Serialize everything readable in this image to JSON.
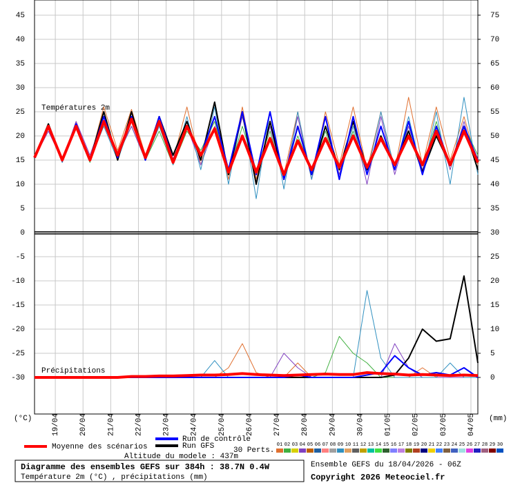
{
  "chart_data": {
    "type": "line",
    "x": [
      0,
      12,
      24,
      36,
      48,
      60,
      72,
      84,
      96,
      108,
      120,
      132,
      144,
      156,
      168,
      180,
      192,
      204,
      216,
      228,
      240,
      252,
      264,
      276,
      288,
      300,
      312,
      324,
      336,
      348,
      360,
      372,
      384
    ],
    "xlim": [
      0,
      384
    ],
    "xticks": [
      {
        "value": 18,
        "label": "19/04"
      },
      {
        "value": 42,
        "label": "20/04"
      },
      {
        "value": 66,
        "label": "21/04"
      },
      {
        "value": 90,
        "label": "22/04"
      },
      {
        "value": 114,
        "label": "23/04"
      },
      {
        "value": 138,
        "label": "24/04"
      },
      {
        "value": 162,
        "label": "25/04"
      },
      {
        "value": 186,
        "label": "26/04"
      },
      {
        "value": 210,
        "label": "27/04"
      },
      {
        "value": 234,
        "label": "28/04"
      },
      {
        "value": 258,
        "label": "29/04"
      },
      {
        "value": 282,
        "label": "30/04"
      },
      {
        "value": 306,
        "label": "01/05"
      },
      {
        "value": 330,
        "label": "02/05"
      },
      {
        "value": 354,
        "label": "03/05"
      },
      {
        "value": 378,
        "label": "04/05"
      }
    ],
    "ylim": [
      -37.57,
      48.14
    ],
    "yticks": [
      45,
      40,
      35,
      30,
      25,
      20,
      15,
      10,
      5,
      0,
      -5,
      -10,
      -15,
      -20,
      -25,
      -30
    ],
    "y2lim": [
      -7.57,
      78.14
    ],
    "y2ticks": [
      75,
      70,
      65,
      60,
      55,
      50,
      45,
      40,
      35,
      30,
      25,
      20,
      15,
      10,
      5,
      0
    ],
    "grid": true,
    "y_unit": "(°C)",
    "y2_unit": "(mm)",
    "temperature_label": "Températures 2m",
    "precipitation_label": "Précipitations",
    "series": [
      {
        "name": "Run GFS",
        "color": "#000000",
        "values": [
          15.5,
          22.5,
          15,
          22,
          15,
          25,
          15,
          25,
          15,
          24,
          16,
          23,
          15,
          27,
          12,
          25,
          10,
          23,
          11,
          22,
          12,
          22,
          13,
          23,
          13,
          20,
          14,
          21,
          12.5,
          20,
          14,
          22,
          13
        ],
        "precipitation": [
          0,
          0,
          0,
          0,
          0,
          0,
          0,
          0,
          0,
          0,
          0,
          0,
          0,
          0,
          0,
          0,
          0,
          0,
          0,
          0,
          0,
          0,
          0,
          0,
          0,
          0,
          0.5,
          4,
          10,
          7.5,
          8,
          21,
          3
        ]
      },
      {
        "name": "Run de contrôle",
        "color": "#0000ff",
        "values": [
          15.5,
          22,
          14.8,
          22.5,
          15,
          24,
          15.5,
          24,
          15,
          24,
          15,
          22,
          16,
          24,
          13,
          25,
          12,
          25,
          11,
          22,
          12,
          24,
          11,
          24,
          12,
          22,
          13,
          23,
          12,
          22,
          14,
          22,
          15
        ],
        "precipitation": [
          0,
          0,
          0,
          0,
          0,
          0,
          0,
          0,
          0,
          0,
          0,
          0,
          0,
          0,
          0,
          0,
          0,
          0,
          0,
          0.5,
          0,
          0,
          0,
          0,
          0.5,
          1,
          4.5,
          2,
          0.5,
          1,
          0.5,
          2,
          0
        ]
      },
      {
        "name": "Moyenne des scénarios",
        "color": "#ff0000",
        "values": [
          15.5,
          22,
          15,
          22,
          15,
          23,
          16,
          23.5,
          15.5,
          23,
          14.5,
          22,
          16,
          21.5,
          12.5,
          20,
          12.5,
          19.5,
          12,
          19,
          13,
          19.5,
          13.5,
          20,
          13.5,
          19.5,
          14,
          20,
          14,
          21,
          14,
          21,
          14.5
        ],
        "precipitation": [
          0,
          0,
          0,
          0,
          0,
          0,
          0,
          0.2,
          0.2,
          0.3,
          0.3,
          0.4,
          0.5,
          0.5,
          0.6,
          0.8,
          0.6,
          0.5,
          0.4,
          0.5,
          0.6,
          0.7,
          0.6,
          0.6,
          1,
          0.8,
          0.7,
          0.5,
          0.6,
          0.5,
          0.4,
          0.5,
          0.4
        ]
      }
    ],
    "perturbations_label": "30 Perts.",
    "perturbations": [
      {
        "name": "01",
        "color": "#e07030",
        "values": [
          15.5,
          22,
          14.5,
          23,
          15,
          26,
          17,
          25.5,
          16,
          24,
          15,
          26,
          14,
          24,
          11,
          26,
          11,
          23,
          12,
          25,
          11,
          25,
          14,
          26,
          13,
          25,
          13,
          28,
          14,
          26,
          15,
          24,
          14
        ],
        "precipitation": [
          0,
          0,
          0,
          0,
          0,
          0,
          0,
          0,
          0,
          0,
          0,
          0,
          0,
          0,
          2,
          7,
          1,
          0,
          0,
          3,
          0,
          0,
          0,
          0,
          0,
          0,
          0,
          0,
          2,
          0,
          0,
          0,
          0
        ]
      },
      {
        "name": "02",
        "color": "#40b040",
        "values": [
          15.5,
          22,
          15,
          21.5,
          14.5,
          24,
          16,
          22,
          15,
          21,
          14,
          21,
          17,
          23,
          12,
          22,
          13,
          21,
          11,
          20,
          13,
          21,
          12,
          21,
          12,
          20,
          14,
          22,
          13,
          23,
          13,
          22,
          16
        ],
        "precipitation": [
          0,
          0,
          0,
          0,
          0,
          0,
          0,
          0,
          0,
          0,
          0,
          0,
          0,
          0,
          0,
          0,
          0,
          0,
          0,
          0,
          0,
          1,
          8.5,
          5,
          3,
          0,
          0,
          0,
          0,
          0,
          0,
          0,
          0
        ]
      },
      {
        "name": "03",
        "color": "#d8d000"
      },
      {
        "name": "04",
        "color": "#8040c0",
        "values": [
          15.5,
          21,
          15,
          23,
          16,
          24,
          16,
          22,
          15,
          22,
          16,
          22,
          14,
          22,
          12,
          24,
          12,
          22,
          11,
          24,
          11,
          22,
          12,
          23,
          10,
          24,
          12,
          22,
          13,
          22,
          13,
          23,
          13
        ],
        "precipitation": [
          0,
          0,
          0,
          0,
          0,
          0,
          0,
          0,
          0,
          0,
          0,
          0,
          0,
          0,
          0,
          0,
          0,
          0,
          5,
          2,
          0,
          0,
          0,
          0,
          0,
          0,
          7,
          2,
          0,
          0,
          0,
          0,
          0
        ]
      },
      {
        "name": "05",
        "color": "#c06000"
      },
      {
        "name": "06",
        "color": "#2060a0"
      },
      {
        "name": "07",
        "color": "#ff8080"
      },
      {
        "name": "08",
        "color": "#a0a0a0"
      },
      {
        "name": "09",
        "color": "#3090c0",
        "values": [
          15.5,
          22,
          14.5,
          22,
          15,
          22,
          15,
          23,
          15,
          22,
          14,
          24,
          13,
          26,
          10,
          25,
          7,
          25,
          9,
          25,
          11,
          24,
          11,
          22,
          12,
          25,
          13,
          24,
          12,
          25,
          10,
          28,
          12
        ],
        "precipitation": [
          0,
          0,
          0,
          0,
          0,
          0,
          0,
          0,
          0,
          0,
          0,
          0,
          0,
          3.5,
          0,
          0,
          0,
          0,
          0,
          0,
          0,
          0,
          0,
          0,
          18,
          4,
          0,
          0,
          0,
          0,
          3,
          0,
          0
        ]
      },
      {
        "name": "10",
        "color": "#e0a060"
      },
      {
        "name": "11",
        "color": "#606060"
      },
      {
        "name": "12",
        "color": "#c0a000"
      },
      {
        "name": "13",
        "color": "#00c0a0"
      },
      {
        "name": "14",
        "color": "#40e040"
      },
      {
        "name": "15",
        "color": "#306030"
      },
      {
        "name": "16",
        "color": "#8080ff"
      },
      {
        "name": "17",
        "color": "#c080e0"
      },
      {
        "name": "18",
        "color": "#808000"
      },
      {
        "name": "19",
        "color": "#b04020"
      },
      {
        "name": "20",
        "color": "#000080"
      },
      {
        "name": "21",
        "color": "#f0d000"
      },
      {
        "name": "22",
        "color": "#4080ff"
      },
      {
        "name": "23",
        "color": "#806040"
      },
      {
        "name": "24",
        "color": "#4060c0"
      },
      {
        "name": "25",
        "color": "#a0e0e0"
      },
      {
        "name": "26",
        "color": "#e040e0"
      },
      {
        "name": "27",
        "color": "#2020c0"
      },
      {
        "name": "28",
        "color": "#a06080"
      },
      {
        "name": "29",
        "color": "#800000"
      },
      {
        "name": "30",
        "color": "#0050c0"
      }
    ],
    "altitude": "Altitude du modele : 437m",
    "title": "Diagramme des ensembles GEFS sur 384h : 38.7N 0.4W",
    "subtitle": "Température 2m (°C) , précipitations (mm)",
    "run_info": "Ensemble GEFS du 18/04/2026 - 06Z",
    "copyright": "Copyright 2026 Meteociel.fr"
  }
}
